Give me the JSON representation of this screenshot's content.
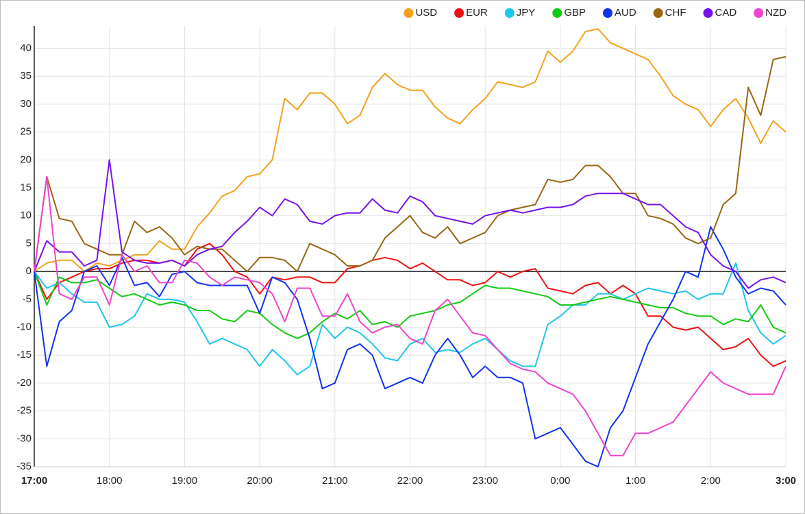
{
  "chart_data": {
    "type": "line",
    "categories": [
      "17:00",
      null,
      null,
      null,
      null,
      null,
      "18:00",
      null,
      null,
      null,
      null,
      null,
      "19:00",
      null,
      null,
      null,
      null,
      null,
      "20:00",
      null,
      null,
      null,
      null,
      null,
      "21:00",
      null,
      null,
      null,
      null,
      null,
      "22:00",
      null,
      null,
      null,
      null,
      null,
      "23:00",
      null,
      null,
      null,
      null,
      null,
      "0:00",
      null,
      null,
      null,
      null,
      null,
      "1:00",
      null,
      null,
      null,
      null,
      null,
      "2:00",
      null,
      null,
      null,
      null,
      null,
      "3:00"
    ],
    "ylim": [
      -35,
      44
    ],
    "yticks": [
      -35,
      -30,
      -25,
      -20,
      -15,
      -10,
      -5,
      0,
      5,
      10,
      15,
      20,
      25,
      30,
      35,
      40
    ],
    "grid": true,
    "legend": "top-right",
    "series": [
      {
        "name": "USD",
        "color": "#f5a11c",
        "values": [
          0,
          1.5,
          2,
          2,
          0,
          1.5,
          1,
          2,
          3,
          3,
          5.5,
          4,
          4,
          8,
          10.5,
          13.5,
          14.5,
          17,
          17.5,
          20,
          31,
          29,
          32,
          32,
          30,
          26.5,
          28,
          33,
          35.5,
          33.5,
          32.5,
          32.5,
          29.5,
          27.5,
          26.5,
          29,
          31,
          34,
          33.5,
          33,
          34,
          39.5,
          37.5,
          39.5,
          43,
          43.5,
          41,
          40,
          39,
          38,
          35,
          31.5,
          30,
          29,
          26,
          29,
          31,
          27.5,
          23,
          27,
          25
        ]
      },
      {
        "name": "EUR",
        "color": "#ee1111",
        "values": [
          0,
          -5,
          -2,
          -1,
          0,
          0.5,
          0.5,
          1.5,
          2,
          2,
          1.5,
          2,
          1,
          4,
          5,
          3,
          0,
          -1,
          -4,
          -1,
          -1.5,
          -1,
          -1,
          -2,
          -2,
          0.5,
          1,
          2,
          2.5,
          2,
          0.5,
          1.5,
          0,
          -1.5,
          -1.5,
          -2.5,
          -2,
          0,
          -1,
          0,
          0.5,
          -3,
          -3.5,
          -4,
          -2.5,
          -2,
          -4,
          -2.5,
          -4,
          -8,
          -8,
          -10,
          -10.5,
          -10,
          -12,
          -14,
          -13.5,
          -12,
          -15,
          -17,
          -16
        ]
      },
      {
        "name": "JPY",
        "color": "#1cc6ee",
        "values": [
          0,
          -3,
          -2,
          -4,
          -5.5,
          -5.5,
          -10,
          -9.5,
          -8,
          -4,
          -5,
          -5,
          -5.5,
          -9,
          -13,
          -12,
          -13,
          -14,
          -17,
          -14,
          -16,
          -18.5,
          -17,
          -9.5,
          -12,
          -10,
          -11,
          -13,
          -15.5,
          -16,
          -13,
          -12,
          -14.5,
          -14,
          -14.5,
          -13,
          -12,
          -14,
          -16,
          -17,
          -17,
          -9.5,
          -8,
          -6,
          -6,
          -4,
          -4,
          -5,
          -4,
          -3,
          -3.5,
          -4,
          -3.5,
          -5,
          -4,
          -4,
          1.5,
          -7,
          -11,
          -13,
          -11.5
        ]
      },
      {
        "name": "GBP",
        "color": "#11cc11",
        "values": [
          0,
          -6,
          -1,
          -2,
          -2,
          -1.5,
          -3,
          -4.5,
          -4,
          -5,
          -6,
          -5.5,
          -6,
          -7,
          -7,
          -8.5,
          -9,
          -7,
          -7.5,
          -9.5,
          -11,
          -12,
          -11,
          -9,
          -7.5,
          -8.5,
          -7,
          -9.5,
          -9,
          -10,
          -8,
          -7.5,
          -7,
          -6,
          -5.5,
          -4,
          -2.5,
          -3,
          -3,
          -3.5,
          -4,
          -4.5,
          -6,
          -6,
          -5.5,
          -5,
          -4.5,
          -5,
          -5.5,
          -6,
          -6.5,
          -6.5,
          -7.5,
          -8,
          -8,
          -9.5,
          -8.5,
          -9,
          -6,
          -10,
          -11
        ]
      },
      {
        "name": "AUD",
        "color": "#1133ee",
        "values": [
          0,
          -17,
          -9,
          -7,
          0,
          1,
          -2.5,
          2.5,
          -2.5,
          -2,
          -4.5,
          -0.5,
          0,
          -2,
          -2.5,
          -2.5,
          -2.5,
          -2.5,
          -7.5,
          -1,
          -2,
          -5,
          -12,
          -21,
          -20,
          -14,
          -13,
          -15,
          -21,
          -20,
          -19,
          -20,
          -15,
          -12,
          -15,
          -19,
          -17,
          -19,
          -19,
          -20,
          -30,
          -29,
          -28,
          -31,
          -34,
          -35,
          -28,
          -25,
          -19,
          -13,
          -9,
          -5,
          0,
          -1,
          8,
          4,
          -1,
          -4,
          -3,
          -3.5,
          -6
        ]
      },
      {
        "name": "CHF",
        "color": "#996611",
        "values": [
          0,
          17,
          9.5,
          9,
          5,
          4,
          3,
          3,
          9,
          7,
          8,
          6,
          3,
          4.5,
          4,
          4,
          2,
          0,
          2.5,
          2.5,
          2,
          0,
          5,
          4,
          3,
          1,
          1,
          2,
          6,
          8,
          10,
          7,
          6,
          8,
          5,
          6,
          7,
          10,
          11,
          11.5,
          12,
          16.5,
          16,
          16.5,
          19,
          19,
          17,
          14,
          14,
          10,
          9.5,
          8.5,
          6,
          5,
          6,
          12,
          14,
          33,
          28,
          38,
          38.5
        ]
      },
      {
        "name": "CAD",
        "color": "#7711ee",
        "values": [
          0,
          5.5,
          3.5,
          3.5,
          1,
          2,
          20,
          3.5,
          2,
          1.5,
          1.5,
          2,
          1,
          3,
          4,
          4.5,
          7,
          9,
          11.5,
          10,
          13,
          12,
          9,
          8.5,
          10,
          10.5,
          10.5,
          13,
          11,
          10.5,
          13.5,
          12.5,
          10,
          9.5,
          9,
          8.5,
          10,
          10.5,
          11,
          10.5,
          11,
          11.5,
          11.5,
          12,
          13.5,
          14,
          14,
          14,
          13,
          12,
          12,
          10,
          8,
          7,
          3,
          1,
          0,
          -3,
          -1.5,
          -1,
          -2
        ]
      },
      {
        "name": "NZD",
        "color": "#ee44cc",
        "values": [
          0,
          17,
          -4,
          -5,
          -1,
          -1,
          -6,
          3,
          0,
          1,
          -2,
          -2,
          2,
          1.5,
          -1,
          -2.5,
          -1,
          -1.5,
          -2,
          -4,
          -9,
          -3,
          -3,
          -8,
          -8,
          -4,
          -9,
          -11,
          -10,
          -9.5,
          -12,
          -13,
          -7,
          -5,
          -8,
          -11,
          -11.5,
          -14,
          -16.5,
          -17.5,
          -18,
          -20,
          -21,
          -22,
          -25,
          -29,
          -33,
          -33,
          -29,
          -29,
          -28,
          -27,
          -24,
          -21,
          -18,
          -20,
          -21,
          -22,
          -22,
          -22,
          -17
        ]
      }
    ]
  }
}
